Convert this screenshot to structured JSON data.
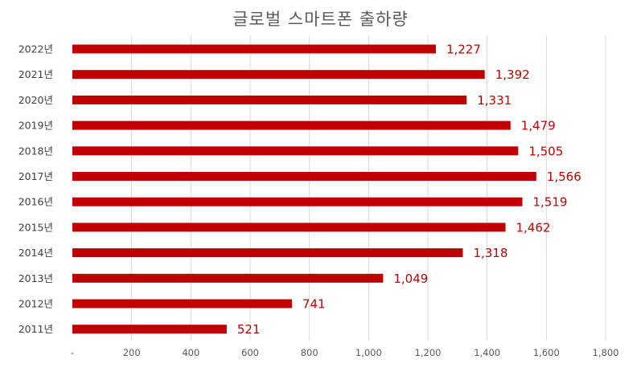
{
  "chart_data": {
    "type": "bar",
    "orientation": "horizontal",
    "title": "글로벌 스마트폰 출하량",
    "categories": [
      "2022년",
      "2021년",
      "2020년",
      "2019년",
      "2018년",
      "2017년",
      "2016년",
      "2015년",
      "2014년",
      "2013년",
      "2012년",
      "2011년"
    ],
    "values": [
      1227,
      1392,
      1331,
      1479,
      1505,
      1566,
      1519,
      1462,
      1318,
      1049,
      741,
      521
    ],
    "value_labels": [
      "1,227",
      "1,392",
      "1,331",
      "1,479",
      "1,505",
      "1,566",
      "1,519",
      "1,462",
      "1,318",
      "1,049",
      "741",
      "521"
    ],
    "xlim": [
      0,
      1800
    ],
    "xticks": [
      0,
      200,
      400,
      600,
      800,
      1000,
      1200,
      1400,
      1600,
      1800
    ],
    "xtick_labels": [
      "-",
      "200",
      "400",
      "600",
      "800",
      "1,000",
      "1,200",
      "1,400",
      "1,600",
      "1,800"
    ],
    "grid": "vertical",
    "legend": "none",
    "colors": {
      "bar": "#C00000",
      "label": "#C00000",
      "grid": "#D9D9D9",
      "axis_text": "#595959"
    }
  }
}
